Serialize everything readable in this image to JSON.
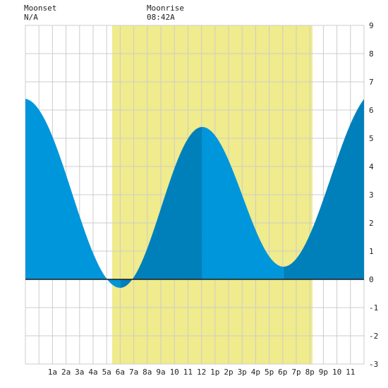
{
  "header": {
    "moonset_title": "Moonset",
    "moonset_value": "N/A",
    "moonrise_title": "Moonrise",
    "moonrise_value": "08:42A"
  },
  "chart_data": {
    "type": "area",
    "title": "",
    "xlabel": "",
    "ylabel": "",
    "x_range_hours": [
      -1,
      24
    ],
    "xticks": [
      {
        "hour": 1,
        "label": "1a"
      },
      {
        "hour": 2,
        "label": "2a"
      },
      {
        "hour": 3,
        "label": "3a"
      },
      {
        "hour": 4,
        "label": "4a"
      },
      {
        "hour": 5,
        "label": "5a"
      },
      {
        "hour": 6,
        "label": "6a"
      },
      {
        "hour": 7,
        "label": "7a"
      },
      {
        "hour": 8,
        "label": "8a"
      },
      {
        "hour": 9,
        "label": "9a"
      },
      {
        "hour": 10,
        "label": "10"
      },
      {
        "hour": 11,
        "label": "11"
      },
      {
        "hour": 12,
        "label": "12"
      },
      {
        "hour": 13,
        "label": "1p"
      },
      {
        "hour": 14,
        "label": "2p"
      },
      {
        "hour": 15,
        "label": "3p"
      },
      {
        "hour": 16,
        "label": "4p"
      },
      {
        "hour": 17,
        "label": "5p"
      },
      {
        "hour": 18,
        "label": "6p"
      },
      {
        "hour": 19,
        "label": "7p"
      },
      {
        "hour": 20,
        "label": "8p"
      },
      {
        "hour": 21,
        "label": "9p"
      },
      {
        "hour": 22,
        "label": "10"
      },
      {
        "hour": 23,
        "label": "11"
      }
    ],
    "ylim": [
      -3,
      9
    ],
    "yticks": [
      -3,
      -2,
      -1,
      0,
      1,
      2,
      3,
      4,
      5,
      6,
      7,
      8,
      9
    ],
    "grid": true,
    "daylight_hours": [
      5.4,
      20.2
    ],
    "tide_extremes": [
      {
        "hour": -1.1,
        "height": 6.4,
        "kind": "high"
      },
      {
        "hour": 6.0,
        "height": -0.3,
        "kind": "low"
      },
      {
        "hour": 12.05,
        "height": 5.4,
        "kind": "high"
      },
      {
        "hour": 18.05,
        "height": 0.45,
        "kind": "low"
      },
      {
        "hour": 25.0,
        "height": 6.7,
        "kind": "high"
      }
    ],
    "colors": {
      "falling": "#0096dc",
      "rising": "#0080bb",
      "daylight": "#f0eb8c",
      "grid": "#cccccc",
      "zero_line": "#1a1a1a"
    }
  }
}
